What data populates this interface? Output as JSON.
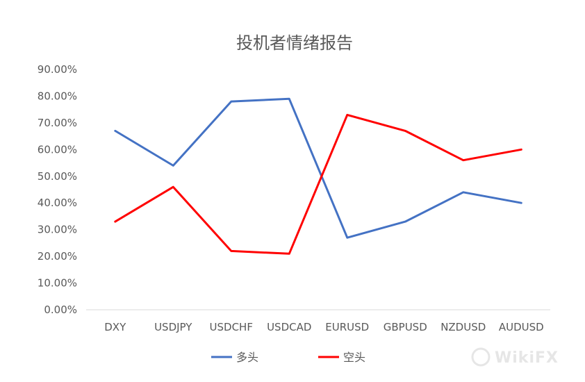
{
  "chart_data": {
    "type": "line",
    "title": "投机者情绪报告",
    "categories": [
      "DXY",
      "USDJPY",
      "USDCHF",
      "USDCAD",
      "EURUSD",
      "GBPUSD",
      "NZDUSD",
      "AUDUSD"
    ],
    "series": [
      {
        "name": "多头",
        "color": "#4472c4",
        "values": [
          0.67,
          0.54,
          0.78,
          0.79,
          0.27,
          0.33,
          0.44,
          0.4
        ]
      },
      {
        "name": "空头",
        "color": "#ff0000",
        "values": [
          0.33,
          0.46,
          0.22,
          0.21,
          0.73,
          0.67,
          0.56,
          0.6
        ]
      }
    ],
    "yticks": [
      "0.00%",
      "10.00%",
      "20.00%",
      "30.00%",
      "40.00%",
      "50.00%",
      "60.00%",
      "70.00%",
      "80.00%",
      "90.00%"
    ],
    "ylim": [
      0,
      0.9
    ],
    "grid": false,
    "legend_position": "bottom"
  },
  "watermark": {
    "text": "WikiFX"
  }
}
